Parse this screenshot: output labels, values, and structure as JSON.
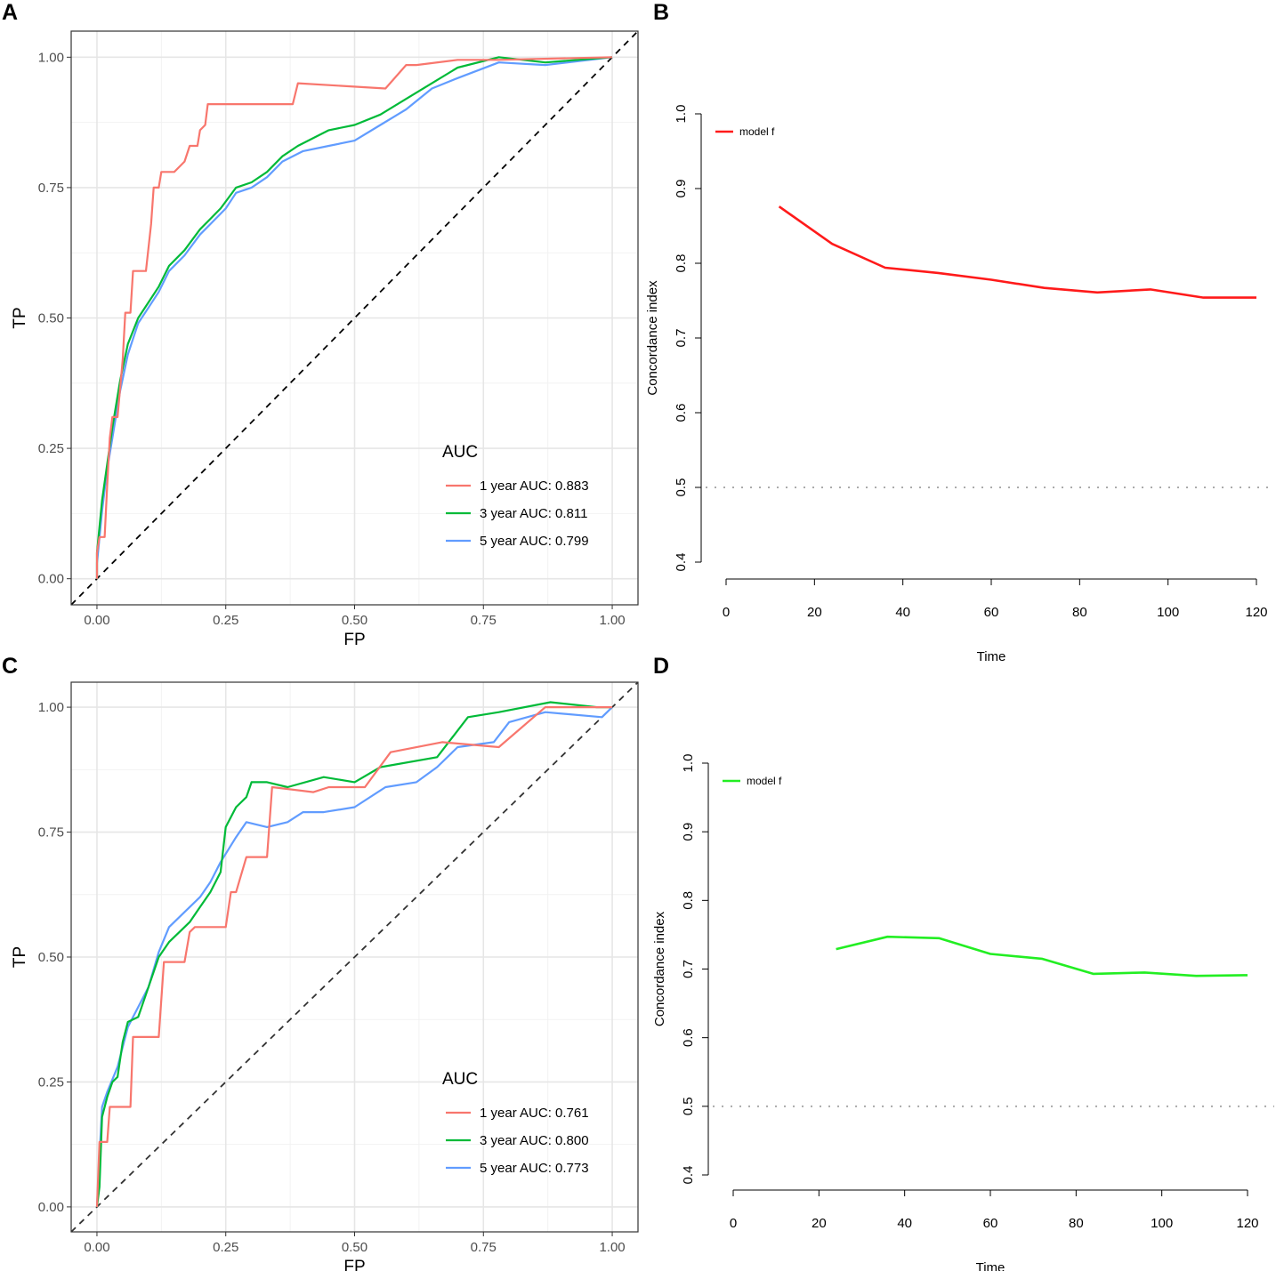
{
  "panels": {
    "a": {
      "letter": "A"
    },
    "b": {
      "letter": "B"
    },
    "c": {
      "letter": "C"
    },
    "d": {
      "letter": "D"
    }
  },
  "chart_data": [
    {
      "id": "A",
      "type": "line",
      "title": "",
      "xlabel": "FP",
      "ylabel": "TP",
      "xlim": [
        -0.05,
        1.05
      ],
      "ylim": [
        -0.05,
        1.05
      ],
      "xticks": [
        0,
        0.25,
        0.5,
        0.75,
        1
      ],
      "xtick_labels": [
        "0.00",
        "0.25",
        "0.50",
        "0.75",
        "1.00"
      ],
      "yticks": [
        0,
        0.25,
        0.5,
        0.75,
        1
      ],
      "ytick_labels": [
        "0.00",
        "0.25",
        "0.50",
        "0.75",
        "1.00"
      ],
      "grid": true,
      "legend_title": "AUC",
      "legend_position": "bottom-right",
      "reference_line": {
        "from": [
          -0.05,
          -0.05
        ],
        "to": [
          1.05,
          1.05
        ],
        "style": "dashed",
        "color": "#000000"
      },
      "series": [
        {
          "name": "1 year AUC: 0.883",
          "color": "#F8766D",
          "points": [
            [
              0,
              0
            ],
            [
              0,
              0.05
            ],
            [
              0.005,
              0.08
            ],
            [
              0.015,
              0.08
            ],
            [
              0.02,
              0.18
            ],
            [
              0.025,
              0.27
            ],
            [
              0.03,
              0.31
            ],
            [
              0.04,
              0.31
            ],
            [
              0.05,
              0.42
            ],
            [
              0.055,
              0.51
            ],
            [
              0.065,
              0.51
            ],
            [
              0.07,
              0.59
            ],
            [
              0.095,
              0.59
            ],
            [
              0.105,
              0.68
            ],
            [
              0.11,
              0.75
            ],
            [
              0.12,
              0.75
            ],
            [
              0.125,
              0.78
            ],
            [
              0.14,
              0.78
            ],
            [
              0.15,
              0.78
            ],
            [
              0.16,
              0.79
            ],
            [
              0.17,
              0.8
            ],
            [
              0.18,
              0.83
            ],
            [
              0.195,
              0.83
            ],
            [
              0.2,
              0.86
            ],
            [
              0.21,
              0.87
            ],
            [
              0.215,
              0.91
            ],
            [
              0.28,
              0.91
            ],
            [
              0.3,
              0.91
            ],
            [
              0.38,
              0.91
            ],
            [
              0.39,
              0.95
            ],
            [
              0.56,
              0.94
            ],
            [
              0.6,
              0.985
            ],
            [
              0.62,
              0.985
            ],
            [
              0.7,
              0.995
            ],
            [
              0.78,
              0.995
            ],
            [
              1,
              1
            ]
          ]
        },
        {
          "name": "3 year AUC: 0.811",
          "color": "#00BA38",
          "points": [
            [
              0,
              0
            ],
            [
              0,
              0.05
            ],
            [
              0.01,
              0.15
            ],
            [
              0.02,
              0.22
            ],
            [
              0.03,
              0.29
            ],
            [
              0.045,
              0.38
            ],
            [
              0.06,
              0.45
            ],
            [
              0.08,
              0.5
            ],
            [
              0.1,
              0.53
            ],
            [
              0.12,
              0.56
            ],
            [
              0.14,
              0.6
            ],
            [
              0.17,
              0.63
            ],
            [
              0.2,
              0.67
            ],
            [
              0.22,
              0.69
            ],
            [
              0.24,
              0.71
            ],
            [
              0.27,
              0.75
            ],
            [
              0.3,
              0.76
            ],
            [
              0.33,
              0.78
            ],
            [
              0.36,
              0.81
            ],
            [
              0.39,
              0.83
            ],
            [
              0.45,
              0.86
            ],
            [
              0.5,
              0.87
            ],
            [
              0.55,
              0.89
            ],
            [
              0.6,
              0.92
            ],
            [
              0.65,
              0.95
            ],
            [
              0.7,
              0.98
            ],
            [
              0.78,
              1.0
            ],
            [
              0.87,
              0.99
            ],
            [
              1,
              1
            ]
          ]
        },
        {
          "name": "5 year AUC: 0.799",
          "color": "#619CFF",
          "points": [
            [
              0,
              0
            ],
            [
              0,
              0.03
            ],
            [
              0.01,
              0.13
            ],
            [
              0.02,
              0.21
            ],
            [
              0.03,
              0.27
            ],
            [
              0.045,
              0.36
            ],
            [
              0.06,
              0.43
            ],
            [
              0.08,
              0.49
            ],
            [
              0.1,
              0.52
            ],
            [
              0.12,
              0.55
            ],
            [
              0.14,
              0.59
            ],
            [
              0.17,
              0.62
            ],
            [
              0.2,
              0.66
            ],
            [
              0.22,
              0.68
            ],
            [
              0.25,
              0.71
            ],
            [
              0.27,
              0.74
            ],
            [
              0.3,
              0.75
            ],
            [
              0.33,
              0.77
            ],
            [
              0.36,
              0.8
            ],
            [
              0.4,
              0.82
            ],
            [
              0.45,
              0.83
            ],
            [
              0.5,
              0.84
            ],
            [
              0.55,
              0.87
            ],
            [
              0.6,
              0.9
            ],
            [
              0.65,
              0.94
            ],
            [
              0.7,
              0.96
            ],
            [
              0.78,
              0.99
            ],
            [
              0.87,
              0.985
            ],
            [
              1,
              1
            ]
          ]
        }
      ]
    },
    {
      "id": "B",
      "type": "line",
      "title": "",
      "xlabel": "Time",
      "ylabel": "Concordance index",
      "xlim": [
        0,
        120
      ],
      "ylim": [
        0.4,
        1.0
      ],
      "xticks": [
        0,
        20,
        40,
        60,
        80,
        100,
        120
      ],
      "xtick_labels": [
        "0",
        "20",
        "40",
        "60",
        "80",
        "100",
        "120"
      ],
      "yticks": [
        0.4,
        0.5,
        0.6,
        0.7,
        0.8,
        0.9,
        1.0
      ],
      "ytick_labels": [
        "0.4",
        "0.5",
        "0.6",
        "0.7",
        "0.8",
        "0.9",
        "1.0"
      ],
      "grid": false,
      "legend_position": "top-left",
      "reference_line": {
        "y": 0.5,
        "style": "dotted",
        "color": "#aaaaaa"
      },
      "series": [
        {
          "name": "model f",
          "color": "#ff1a1a",
          "x": [
            12,
            24,
            36,
            48,
            60,
            72,
            84,
            96,
            108,
            120
          ],
          "y": [
            0.876,
            0.826,
            0.794,
            0.787,
            0.778,
            0.767,
            0.761,
            0.765,
            0.754,
            0.754
          ]
        }
      ]
    },
    {
      "id": "C",
      "type": "line",
      "title": "",
      "xlabel": "FP",
      "ylabel": "TP",
      "xlim": [
        -0.05,
        1.05
      ],
      "ylim": [
        -0.05,
        1.05
      ],
      "xticks": [
        0,
        0.25,
        0.5,
        0.75,
        1
      ],
      "xtick_labels": [
        "0.00",
        "0.25",
        "0.50",
        "0.75",
        "1.00"
      ],
      "yticks": [
        0,
        0.25,
        0.5,
        0.75,
        1
      ],
      "ytick_labels": [
        "0.00",
        "0.25",
        "0.50",
        "0.75",
        "1.00"
      ],
      "grid": true,
      "legend_title": "AUC",
      "legend_position": "bottom-right",
      "reference_line": {
        "from": [
          -0.05,
          -0.05
        ],
        "to": [
          1.05,
          1.05
        ],
        "style": "dashed",
        "color": "#333333"
      },
      "series": [
        {
          "name": "1 year AUC: 0.761",
          "color": "#F8766D",
          "points": [
            [
              0,
              0
            ],
            [
              0.005,
              0.13
            ],
            [
              0.02,
              0.13
            ],
            [
              0.025,
              0.2
            ],
            [
              0.065,
              0.2
            ],
            [
              0.07,
              0.34
            ],
            [
              0.12,
              0.34
            ],
            [
              0.13,
              0.49
            ],
            [
              0.17,
              0.49
            ],
            [
              0.18,
              0.55
            ],
            [
              0.19,
              0.56
            ],
            [
              0.25,
              0.56
            ],
            [
              0.26,
              0.63
            ],
            [
              0.27,
              0.63
            ],
            [
              0.29,
              0.7
            ],
            [
              0.33,
              0.7
            ],
            [
              0.34,
              0.84
            ],
            [
              0.42,
              0.83
            ],
            [
              0.45,
              0.84
            ],
            [
              0.52,
              0.84
            ],
            [
              0.57,
              0.91
            ],
            [
              0.67,
              0.93
            ],
            [
              0.78,
              0.92
            ],
            [
              0.87,
              1.0
            ],
            [
              0.98,
              1.0
            ],
            [
              1,
              1
            ]
          ]
        },
        {
          "name": "3 year AUC: 0.800",
          "color": "#00BA38",
          "points": [
            [
              0,
              0
            ],
            [
              0.005,
              0.04
            ],
            [
              0.01,
              0.18
            ],
            [
              0.02,
              0.22
            ],
            [
              0.03,
              0.25
            ],
            [
              0.04,
              0.26
            ],
            [
              0.05,
              0.33
            ],
            [
              0.06,
              0.37
            ],
            [
              0.08,
              0.38
            ],
            [
              0.1,
              0.44
            ],
            [
              0.12,
              0.5
            ],
            [
              0.14,
              0.53
            ],
            [
              0.16,
              0.55
            ],
            [
              0.18,
              0.57
            ],
            [
              0.2,
              0.6
            ],
            [
              0.22,
              0.63
            ],
            [
              0.24,
              0.67
            ],
            [
              0.25,
              0.76
            ],
            [
              0.27,
              0.8
            ],
            [
              0.29,
              0.82
            ],
            [
              0.3,
              0.85
            ],
            [
              0.33,
              0.85
            ],
            [
              0.37,
              0.84
            ],
            [
              0.44,
              0.86
            ],
            [
              0.5,
              0.85
            ],
            [
              0.55,
              0.88
            ],
            [
              0.66,
              0.9
            ],
            [
              0.72,
              0.98
            ],
            [
              0.78,
              0.99
            ],
            [
              0.88,
              1.01
            ],
            [
              0.97,
              1.0
            ],
            [
              1,
              1
            ]
          ]
        },
        {
          "name": "5 year AUC: 0.773",
          "color": "#619CFF",
          "points": [
            [
              0,
              0
            ],
            [
              0.005,
              0.1
            ],
            [
              0.01,
              0.2
            ],
            [
              0.02,
              0.23
            ],
            [
              0.04,
              0.28
            ],
            [
              0.06,
              0.36
            ],
            [
              0.08,
              0.4
            ],
            [
              0.1,
              0.44
            ],
            [
              0.12,
              0.51
            ],
            [
              0.14,
              0.56
            ],
            [
              0.16,
              0.58
            ],
            [
              0.18,
              0.6
            ],
            [
              0.2,
              0.62
            ],
            [
              0.22,
              0.65
            ],
            [
              0.24,
              0.69
            ],
            [
              0.27,
              0.74
            ],
            [
              0.29,
              0.77
            ],
            [
              0.33,
              0.76
            ],
            [
              0.37,
              0.77
            ],
            [
              0.4,
              0.79
            ],
            [
              0.44,
              0.79
            ],
            [
              0.5,
              0.8
            ],
            [
              0.56,
              0.84
            ],
            [
              0.62,
              0.85
            ],
            [
              0.66,
              0.88
            ],
            [
              0.7,
              0.92
            ],
            [
              0.77,
              0.93
            ],
            [
              0.8,
              0.97
            ],
            [
              0.87,
              0.99
            ],
            [
              0.98,
              0.98
            ],
            [
              1,
              1
            ]
          ]
        }
      ]
    },
    {
      "id": "D",
      "type": "line",
      "title": "",
      "xlabel": "Time",
      "ylabel": "Concordance index",
      "xlim": [
        0,
        120
      ],
      "ylim": [
        0.4,
        1.0
      ],
      "xticks": [
        0,
        20,
        40,
        60,
        80,
        100,
        120
      ],
      "xtick_labels": [
        "0",
        "20",
        "40",
        "60",
        "80",
        "100",
        "120"
      ],
      "yticks": [
        0.4,
        0.5,
        0.6,
        0.7,
        0.8,
        0.9,
        1.0
      ],
      "ytick_labels": [
        "0.4",
        "0.5",
        "0.6",
        "0.7",
        "0.8",
        "0.9",
        "1.0"
      ],
      "grid": false,
      "legend_position": "top-left",
      "reference_line": {
        "y": 0.5,
        "style": "dotted",
        "color": "#aaaaaa"
      },
      "series": [
        {
          "name": "model f",
          "color": "#22ee22",
          "x": [
            24,
            36,
            48,
            60,
            72,
            84,
            96,
            108,
            120
          ],
          "y": [
            0.729,
            0.747,
            0.745,
            0.722,
            0.715,
            0.693,
            0.695,
            0.69,
            0.691
          ]
        }
      ]
    }
  ]
}
